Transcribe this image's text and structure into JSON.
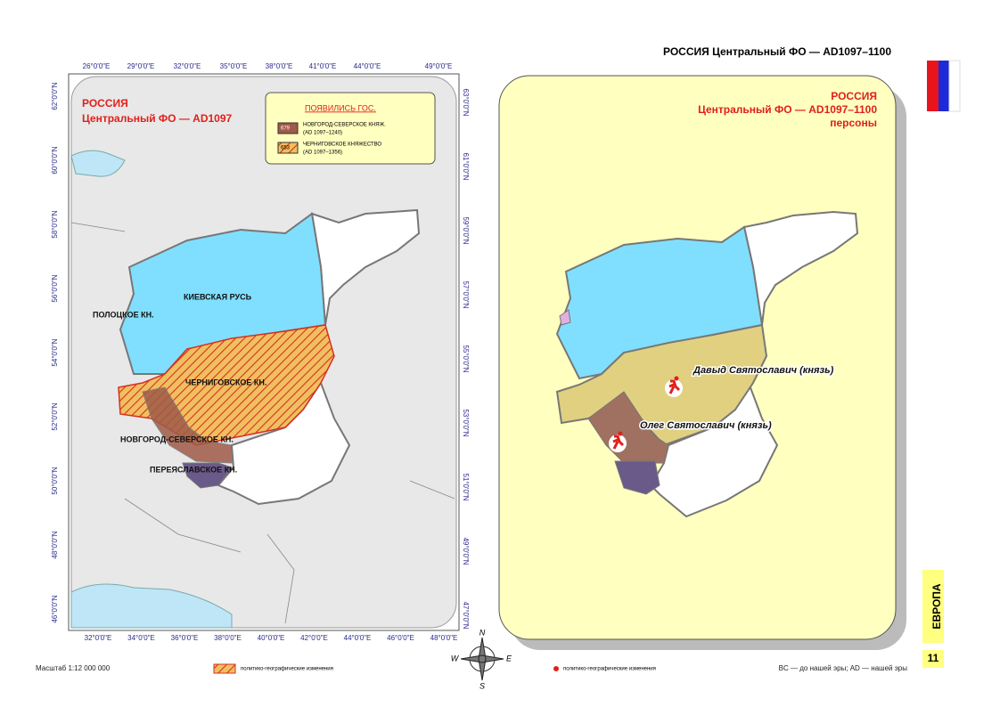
{
  "header": {
    "title": "РОССИЯ Центральный ФО — AD1097–1100"
  },
  "left_map": {
    "title": "РОССИЯ",
    "subtitle": "Центральный ФО — AD1097",
    "legend": {
      "title": "ПОЯВИЛИСЬ ГОС.",
      "items": [
        {
          "code": "679",
          "name": "НОВГОРОД-СЕВЕРСКОЕ КНЯЖ.",
          "period": "(AD 1097–1240)"
        },
        {
          "code": "653",
          "name": "ЧЕРНИГОВСКОЕ КНЯЖЕСТВО",
          "period": "(AD 1097–1356)"
        }
      ]
    },
    "regions": [
      "КИЕВСКАЯ РУСЬ",
      "ПОЛОЦКОЕ КН.",
      "ЧЕРНИГОВСКОЕ КН.",
      "НОВГОРОД-СЕВЕРСКОЕ КН.",
      "ПЕРЕЯСЛАВСКОЕ КН."
    ],
    "top_ticks": [
      "26°0'0\"E",
      "29°0'0\"E",
      "32°0'0\"E",
      "35°0'0\"E",
      "38°0'0\"E",
      "41°0'0\"E",
      "44°0'0\"E",
      "49°0'0\"E"
    ],
    "bottom_ticks": [
      "32°0'0\"E",
      "34°0'0\"E",
      "36°0'0\"E",
      "38°0'0\"E",
      "40°0'0\"E",
      "42°0'0\"E",
      "44°0'0\"E",
      "46°0'0\"E",
      "48°0'0\"E"
    ],
    "left_ticks": [
      "62°0'0\"N",
      "60°0'0\"N",
      "58°0'0\"N",
      "56°0'0\"N",
      "54°0'0\"N",
      "52°0'0\"N",
      "50°0'0\"N",
      "48°0'0\"N",
      "46°0'0\"N"
    ],
    "right_ticks": [
      "63°0'0\"N",
      "61°0'0\"N",
      "59°0'0\"N",
      "57°0'0\"N",
      "55°0'0\"N",
      "53°0'0\"N",
      "51°0'0\"N",
      "49°0'0\"N",
      "47°0'0\"N"
    ]
  },
  "right_map": {
    "title": "РОССИЯ",
    "subtitle": "Центральный ФО — AD1097–1100",
    "subtitle2": "персоны",
    "persons": [
      "Давыд Святославич (князь)",
      "Олег Святославич (князь)"
    ]
  },
  "compass": [
    "N",
    "W",
    "E",
    "S"
  ],
  "footer": {
    "scale": "Масштаб 1:12 000 000",
    "hatch_legend": "политико-географические изменения",
    "dot_legend": "политико-географические изменения",
    "note": "BC — до нашей эры; AD — нашей эры"
  },
  "side": {
    "tab": "ЕВРОПА",
    "page": "11"
  }
}
